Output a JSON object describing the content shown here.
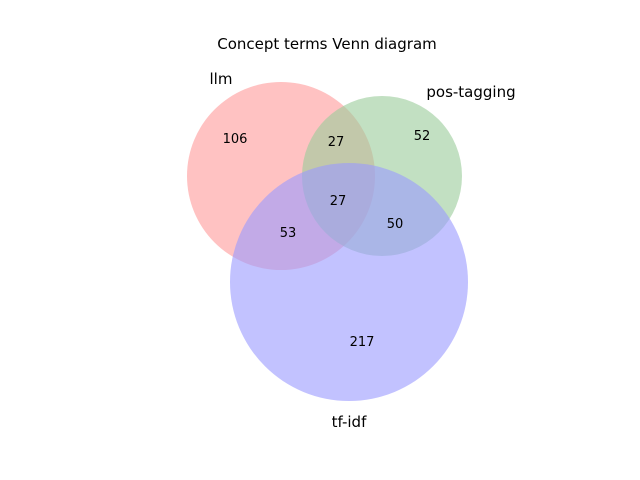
{
  "title": "Concept terms Venn diagram",
  "sets": [
    {
      "key": "llm",
      "label": "llm",
      "color": "#ff9999",
      "size": 213
    },
    {
      "key": "pos",
      "label": "pos-tagging",
      "color": "#99cc99",
      "size": 156
    },
    {
      "key": "tfidf",
      "label": "tf-idf",
      "color": "#9999ff",
      "size": 347
    }
  ],
  "regions": {
    "llm_only": "106",
    "pos_only": "52",
    "tfidf_only": "217",
    "llm_pos": "27",
    "llm_tfidf": "53",
    "pos_tfidf": "50",
    "all": "27"
  }
}
